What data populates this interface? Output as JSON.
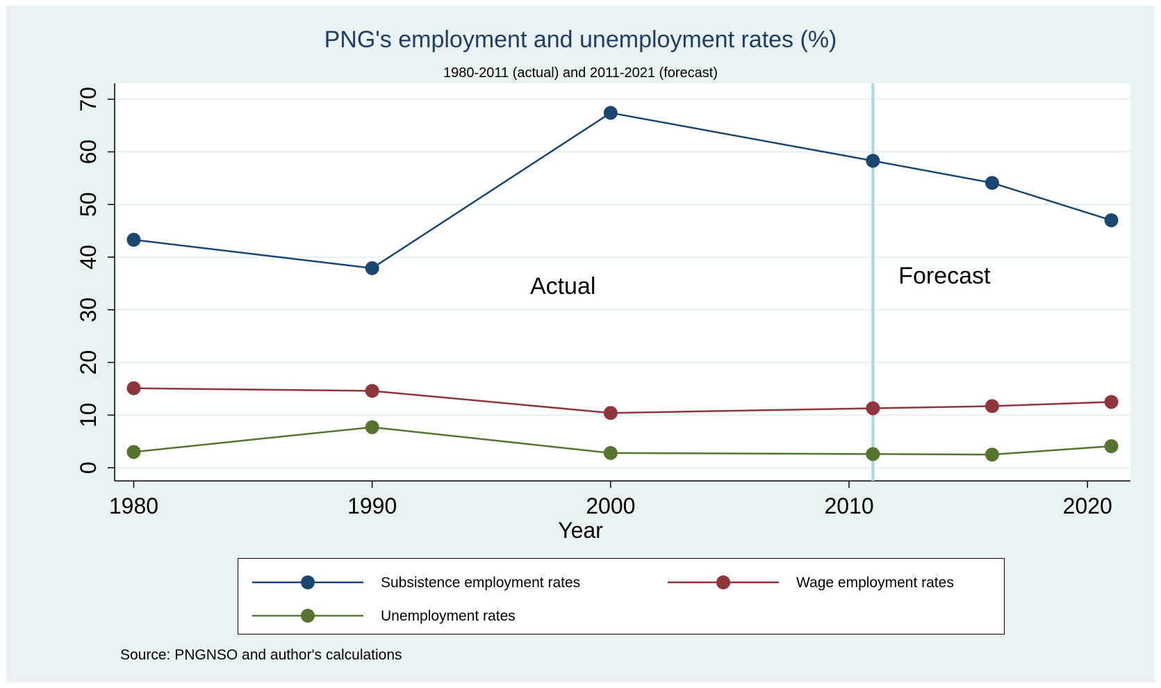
{
  "title": "PNG's employment and unemployment rates (%)",
  "subtitle": "1980-2011 (actual) and 2011-2021 (forecast)",
  "source": "Source: PNGNSO and author's calculations",
  "colors": {
    "background": "#eaf2f3",
    "plot_background": "#ffffff",
    "subsistence": "#1a476f",
    "wage": "#90353b",
    "unemployment": "#55752f",
    "forecast_line": "#a9d4e6",
    "title": "#1f3d6b"
  },
  "chart_data": {
    "type": "line",
    "title": "PNG's employment and unemployment rates (%)",
    "subtitle": "1980-2011 (actual) and 2011-2021 (forecast)",
    "xlabel": "Year",
    "ylabel": "",
    "x": [
      1980,
      1990,
      2000,
      2011,
      2016,
      2021
    ],
    "xlim": [
      1979.2,
      2021.8
    ],
    "ylim": [
      -2.5,
      73
    ],
    "xticks": [
      1980,
      1990,
      2000,
      2010,
      2020
    ],
    "yticks": [
      0,
      10,
      20,
      30,
      40,
      50,
      60,
      70
    ],
    "grid": true,
    "legend_position": "bottom",
    "series": [
      {
        "name": "Subsistence employment rates",
        "color": "#1a476f",
        "values": [
          43.3,
          37.9,
          67.4,
          58.3,
          54.1,
          47.0
        ]
      },
      {
        "name": "Wage employment rates",
        "color": "#90353b",
        "values": [
          15.1,
          14.6,
          10.4,
          11.3,
          11.7,
          12.5
        ]
      },
      {
        "name": "Unemployment rates",
        "color": "#55752f",
        "values": [
          3.0,
          7.7,
          2.8,
          2.6,
          2.5,
          4.1
        ]
      }
    ],
    "reference_line": {
      "x": 2011
    },
    "annotations": [
      {
        "text": "Actual",
        "x": 1998,
        "y": 33
      },
      {
        "text": "Forecast",
        "x": 2014,
        "y": 35
      }
    ]
  }
}
